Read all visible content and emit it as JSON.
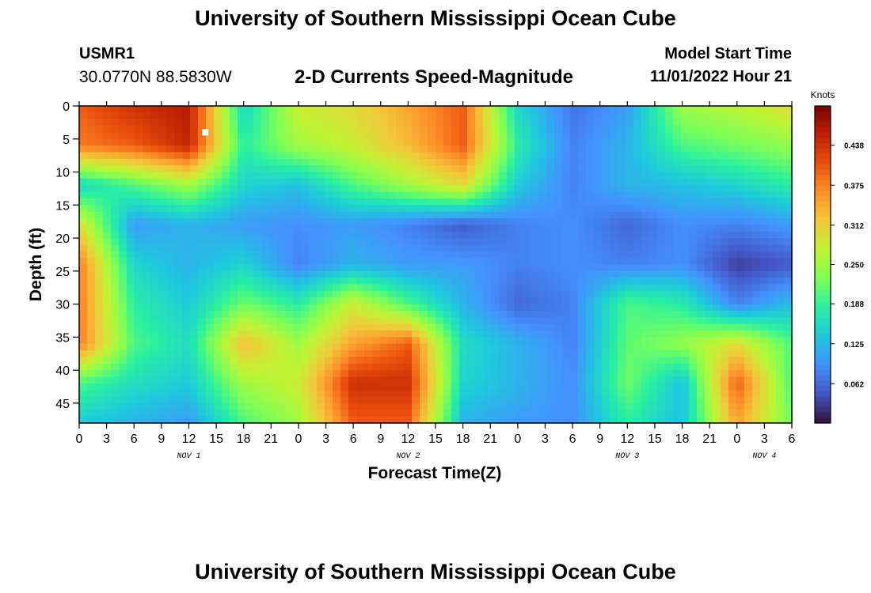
{
  "page": {
    "title": "University of Southern Mississippi Ocean Cube",
    "station_id": "USMR1",
    "coords": "30.0770N  88.5830W",
    "subtitle": "2-D Currents Speed-Magnitude",
    "start_label": "Model Start Time",
    "start_value": "11/01/2022 Hour 21",
    "bottom_title": "University of Southern Mississippi Ocean Cube"
  },
  "colors": {
    "scale": [
      "#30123b",
      "#4454c4",
      "#4490fe",
      "#1fc8de",
      "#29efa2",
      "#7dff56",
      "#c1f334",
      "#f1ca3a",
      "#fe922a",
      "#ea4f0d",
      "#be2102",
      "#7a0403"
    ]
  },
  "chart_data": {
    "type": "heatmap",
    "xlabel": "Forecast Time(Z)",
    "ylabel": "Depth (ft)",
    "x_range_hours": [
      0,
      78
    ],
    "y_range_ft": [
      0,
      48
    ],
    "x_tick_labels": [
      "0",
      "3",
      "6",
      "9",
      "12",
      "15",
      "18",
      "21",
      "0",
      "3",
      "6",
      "9",
      "12",
      "15",
      "18",
      "21",
      "0",
      "3",
      "6",
      "9",
      "12",
      "15",
      "18",
      "21",
      "0",
      "3",
      "6"
    ],
    "y_ticks": [
      0,
      5,
      10,
      15,
      20,
      25,
      30,
      35,
      40,
      45
    ],
    "day_labels": [
      {
        "label": "NOV 1",
        "hour": 12
      },
      {
        "label": "NOV 2",
        "hour": 36
      },
      {
        "label": "NOV 3",
        "hour": 60
      },
      {
        "label": "NOV 4",
        "hour": 75
      }
    ],
    "colorbar": {
      "title": "Knots",
      "min": 0.0,
      "max": 0.5,
      "ticks": [
        "0.062",
        "0.125",
        "0.188",
        "0.250",
        "0.312",
        "0.375",
        "0.438"
      ]
    },
    "marker": {
      "hour": 13.8,
      "depth_ft": 4.0
    },
    "grid_columns_hours": [
      0,
      6,
      12,
      18,
      24,
      30,
      36,
      42,
      48,
      54,
      60,
      66,
      72,
      78
    ],
    "grid_rows_depth_ft": [
      0,
      6,
      12,
      18,
      24,
      30,
      36,
      42,
      48
    ],
    "speed_knots": [
      [
        0.4,
        0.44,
        0.46,
        0.15,
        0.28,
        0.3,
        0.35,
        0.4,
        0.15,
        0.07,
        0.1,
        0.25,
        0.27,
        0.3
      ],
      [
        0.38,
        0.4,
        0.45,
        0.18,
        0.25,
        0.28,
        0.33,
        0.4,
        0.18,
        0.08,
        0.12,
        0.2,
        0.22,
        0.24
      ],
      [
        0.15,
        0.2,
        0.25,
        0.15,
        0.13,
        0.2,
        0.25,
        0.3,
        0.14,
        0.08,
        0.12,
        0.13,
        0.15,
        0.18
      ],
      [
        0.3,
        0.1,
        0.12,
        0.1,
        0.09,
        0.1,
        0.08,
        0.05,
        0.08,
        0.09,
        0.06,
        0.09,
        0.08,
        0.1
      ],
      [
        0.38,
        0.15,
        0.12,
        0.15,
        0.08,
        0.12,
        0.1,
        0.1,
        0.08,
        0.09,
        0.08,
        0.09,
        0.03,
        0.05
      ],
      [
        0.38,
        0.18,
        0.14,
        0.22,
        0.18,
        0.28,
        0.2,
        0.12,
        0.06,
        0.08,
        0.2,
        0.18,
        0.08,
        0.13
      ],
      [
        0.38,
        0.2,
        0.16,
        0.33,
        0.25,
        0.35,
        0.4,
        0.16,
        0.12,
        0.08,
        0.21,
        0.24,
        0.3,
        0.2
      ],
      [
        0.2,
        0.16,
        0.14,
        0.25,
        0.28,
        0.44,
        0.44,
        0.15,
        0.12,
        0.09,
        0.22,
        0.13,
        0.4,
        0.2
      ],
      [
        0.14,
        0.12,
        0.1,
        0.2,
        0.25,
        0.4,
        0.4,
        0.12,
        0.1,
        0.09,
        0.18,
        0.13,
        0.35,
        0.22
      ]
    ]
  }
}
